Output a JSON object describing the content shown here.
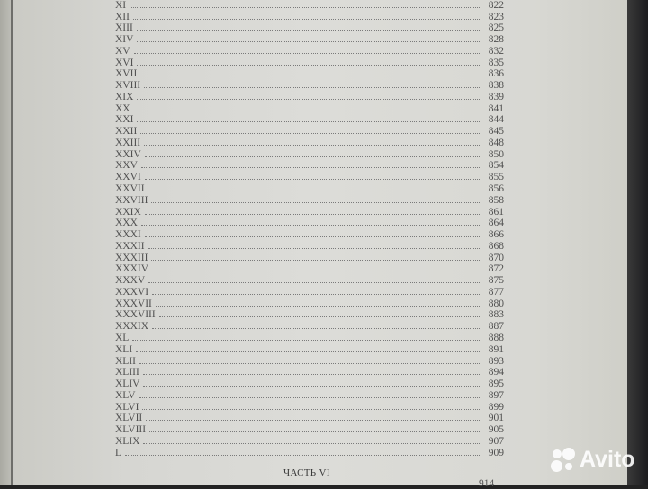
{
  "toc": {
    "entries": [
      {
        "num": "XI",
        "page": "822"
      },
      {
        "num": "XII",
        "page": "823"
      },
      {
        "num": "XIII",
        "page": "825"
      },
      {
        "num": "XIV",
        "page": "828"
      },
      {
        "num": "XV",
        "page": "832"
      },
      {
        "num": "XVI",
        "page": "835"
      },
      {
        "num": "XVII",
        "page": "836"
      },
      {
        "num": "XVIII",
        "page": "838"
      },
      {
        "num": "XIX",
        "page": "839"
      },
      {
        "num": "XX",
        "page": "841"
      },
      {
        "num": "XXI",
        "page": "844"
      },
      {
        "num": "XXII",
        "page": "845"
      },
      {
        "num": "XXIII",
        "page": "848"
      },
      {
        "num": "XXIV",
        "page": "850"
      },
      {
        "num": "XXV",
        "page": "854"
      },
      {
        "num": "XXVI",
        "page": "855"
      },
      {
        "num": "XXVII",
        "page": "856"
      },
      {
        "num": "XXVIII",
        "page": "858"
      },
      {
        "num": "XXIX",
        "page": "861"
      },
      {
        "num": "XXX",
        "page": "864"
      },
      {
        "num": "XXXI",
        "page": "866"
      },
      {
        "num": "XXXII",
        "page": "868"
      },
      {
        "num": "XXXIII",
        "page": "870"
      },
      {
        "num": "XXXIV",
        "page": "872"
      },
      {
        "num": "XXXV",
        "page": "875"
      },
      {
        "num": "XXXVI",
        "page": "877"
      },
      {
        "num": "XXXVII",
        "page": "880"
      },
      {
        "num": "XXXVIII",
        "page": "883"
      },
      {
        "num": "XXXIX",
        "page": "887"
      },
      {
        "num": "XL",
        "page": "888"
      },
      {
        "num": "XLI",
        "page": "891"
      },
      {
        "num": "XLII",
        "page": "893"
      },
      {
        "num": "XLIII",
        "page": "894"
      },
      {
        "num": "XLIV",
        "page": "895"
      },
      {
        "num": "XLV",
        "page": "897"
      },
      {
        "num": "XLVI",
        "page": "899"
      },
      {
        "num": "XLVII",
        "page": "901"
      },
      {
        "num": "XLVIII",
        "page": "905"
      },
      {
        "num": "XLIX",
        "page": "907"
      },
      {
        "num": "L",
        "page": "909"
      }
    ],
    "part_heading": "ЧАСТЬ VI",
    "next_page": "914"
  },
  "watermark": {
    "text": "Avito",
    "color": "#ffffff"
  }
}
